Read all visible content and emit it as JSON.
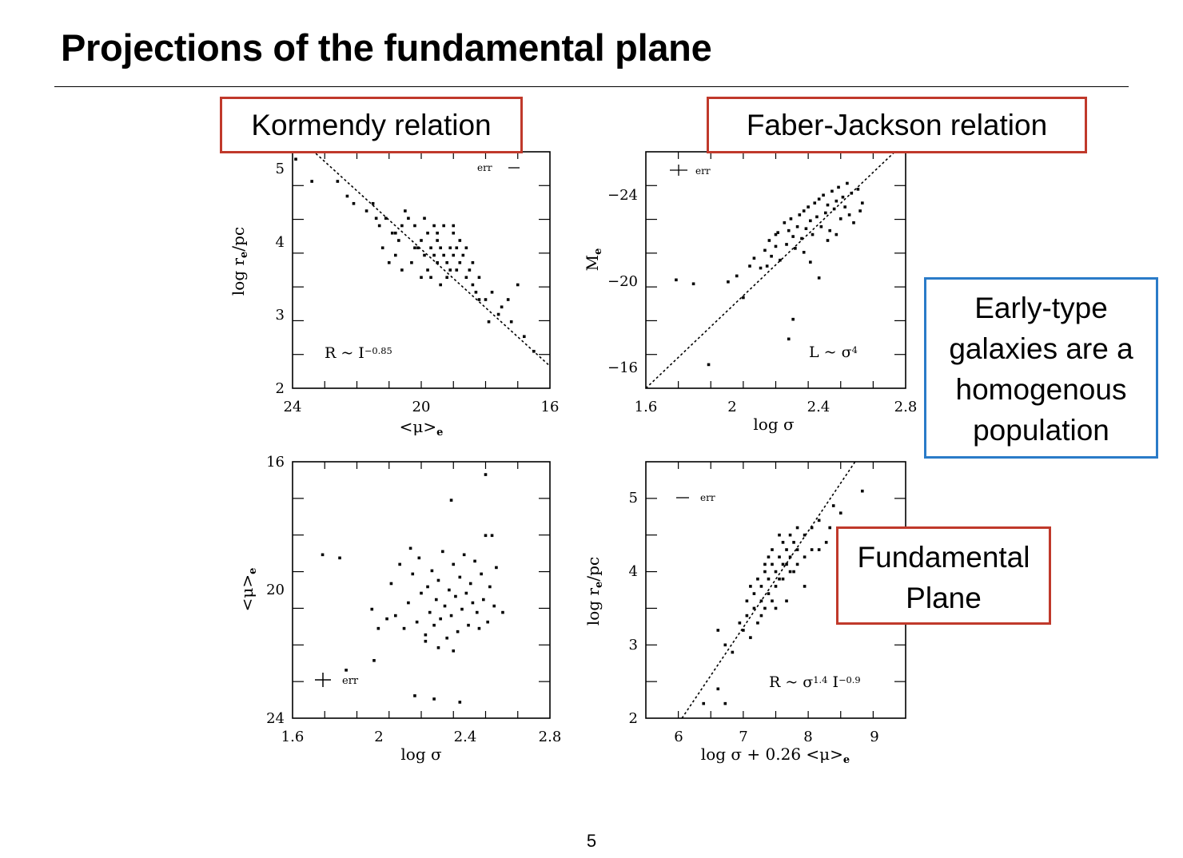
{
  "slide": {
    "title": "Projections of the fundamental plane",
    "page_number": "5"
  },
  "callouts": {
    "kormendy": "Kormendy relation",
    "faber_jackson": "Faber-Jackson relation",
    "early_type": [
      "Early-type",
      "galaxies are a",
      "homogenous",
      "population"
    ],
    "fundamental_plane": [
      "Fundamental",
      "Plane"
    ]
  },
  "colors": {
    "red_box": "#c0392b",
    "blue_box": "#2a7bc8"
  },
  "chart_data": [
    {
      "type": "scatter",
      "xlabel": "<μ>e",
      "ylabel": "log re/pc",
      "xlim": [
        24,
        16
      ],
      "ylim": [
        2,
        5.2
      ],
      "xticks": [
        "24",
        "20",
        "16"
      ],
      "yticks": [
        "2",
        "3",
        "4",
        "5"
      ],
      "annotation": "R ~ I^-0.85",
      "err_label": "err",
      "fit_line": [
        [
          24.6,
          5.7
        ],
        [
          16,
          2.3
        ]
      ],
      "points": [
        [
          23.9,
          5.1
        ],
        [
          23.4,
          4.8
        ],
        [
          22.6,
          4.8
        ],
        [
          22.3,
          4.6
        ],
        [
          22.1,
          4.5
        ],
        [
          21.7,
          4.4
        ],
        [
          21.5,
          4.5
        ],
        [
          21.3,
          4.2
        ],
        [
          21.1,
          4.3
        ],
        [
          20.9,
          4.1
        ],
        [
          20.7,
          4.0
        ],
        [
          20.6,
          4.2
        ],
        [
          20.4,
          4.3
        ],
        [
          20.2,
          4.2
        ],
        [
          20.1,
          3.9
        ],
        [
          20.0,
          4.0
        ],
        [
          19.9,
          3.8
        ],
        [
          19.8,
          4.1
        ],
        [
          19.7,
          3.9
        ],
        [
          19.6,
          3.8
        ],
        [
          19.5,
          3.7
        ],
        [
          19.5,
          4.0
        ],
        [
          19.4,
          3.9
        ],
        [
          19.3,
          3.8
        ],
        [
          19.2,
          3.7
        ],
        [
          19.1,
          3.9
        ],
        [
          19.0,
          3.8
        ],
        [
          18.9,
          3.6
        ],
        [
          18.8,
          3.7
        ],
        [
          18.7,
          3.8
        ],
        [
          18.6,
          3.5
        ],
        [
          18.5,
          3.6
        ],
        [
          18.4,
          3.4
        ],
        [
          18.3,
          3.3
        ],
        [
          18.2,
          3.5
        ],
        [
          18.0,
          3.2
        ],
        [
          17.8,
          3.3
        ],
        [
          17.5,
          3.1
        ],
        [
          17.2,
          2.9
        ],
        [
          16.8,
          2.7
        ],
        [
          16.5,
          2.5
        ],
        [
          19.9,
          4.3
        ],
        [
          19.6,
          4.2
        ],
        [
          19.3,
          4.2
        ],
        [
          19.0,
          4.1
        ],
        [
          18.8,
          4.0
        ],
        [
          20.6,
          3.6
        ],
        [
          20.3,
          3.7
        ],
        [
          20.0,
          3.5
        ],
        [
          19.7,
          3.5
        ],
        [
          19.4,
          3.4
        ],
        [
          19.2,
          3.5
        ],
        [
          21.0,
          3.7
        ],
        [
          21.2,
          3.9
        ],
        [
          20.8,
          3.8
        ],
        [
          18.6,
          3.9
        ],
        [
          18.2,
          3.2
        ],
        [
          17.9,
          2.9
        ],
        [
          17.6,
          3.0
        ],
        [
          19.0,
          4.2
        ],
        [
          20.5,
          4.4
        ],
        [
          19.8,
          3.6
        ],
        [
          19.1,
          3.6
        ],
        [
          18.9,
          3.9
        ],
        [
          19.5,
          4.1
        ],
        [
          20.2,
          3.9
        ],
        [
          20.8,
          4.1
        ],
        [
          21.4,
          4.3
        ],
        [
          18.4,
          3.7
        ],
        [
          17.0,
          3.4
        ],
        [
          17.3,
          3.2
        ]
      ]
    },
    {
      "type": "scatter",
      "xlabel": "log σ",
      "ylabel": "Me",
      "xlim": [
        1.6,
        2.8
      ],
      "ylim": [
        -14.8,
        -26.8
      ],
      "xticks": [
        "1.6",
        "2",
        "2.4",
        "2.8"
      ],
      "yticks": [
        "-24",
        "-20",
        "-16"
      ],
      "annotation": "L ~ σ^4",
      "err_label": "err",
      "fit_line": [
        [
          1.6,
          -14.8
        ],
        [
          2.75,
          -26.8
        ]
      ],
      "points": [
        [
          1.74,
          -20.3
        ],
        [
          1.82,
          -20.1
        ],
        [
          1.89,
          -16.0
        ],
        [
          1.98,
          -20.2
        ],
        [
          2.02,
          -20.5
        ],
        [
          2.05,
          -19.4
        ],
        [
          2.08,
          -21.0
        ],
        [
          2.1,
          -21.4
        ],
        [
          2.13,
          -20.9
        ],
        [
          2.15,
          -21.8
        ],
        [
          2.17,
          -22.3
        ],
        [
          2.18,
          -21.5
        ],
        [
          2.2,
          -22.0
        ],
        [
          2.21,
          -22.7
        ],
        [
          2.22,
          -21.3
        ],
        [
          2.24,
          -23.2
        ],
        [
          2.25,
          -22.1
        ],
        [
          2.26,
          -22.8
        ],
        [
          2.27,
          -23.4
        ],
        [
          2.28,
          -22.5
        ],
        [
          2.29,
          -21.9
        ],
        [
          2.3,
          -23.0
        ],
        [
          2.31,
          -23.6
        ],
        [
          2.32,
          -22.4
        ],
        [
          2.33,
          -23.8
        ],
        [
          2.34,
          -22.9
        ],
        [
          2.35,
          -24.0
        ],
        [
          2.36,
          -23.3
        ],
        [
          2.37,
          -22.6
        ],
        [
          2.38,
          -24.2
        ],
        [
          2.39,
          -23.5
        ],
        [
          2.4,
          -24.4
        ],
        [
          2.41,
          -23.0
        ],
        [
          2.42,
          -24.6
        ],
        [
          2.43,
          -23.7
        ],
        [
          2.44,
          -24.1
        ],
        [
          2.45,
          -22.8
        ],
        [
          2.46,
          -24.8
        ],
        [
          2.47,
          -23.9
        ],
        [
          2.48,
          -24.3
        ],
        [
          2.49,
          -25.0
        ],
        [
          2.5,
          -23.4
        ],
        [
          2.51,
          -24.5
        ],
        [
          2.52,
          -24.0
        ],
        [
          2.53,
          -25.2
        ],
        [
          2.54,
          -23.6
        ],
        [
          2.55,
          -24.7
        ],
        [
          2.56,
          -23.2
        ],
        [
          2.58,
          -24.9
        ],
        [
          2.59,
          -23.8
        ],
        [
          2.6,
          -24.2
        ],
        [
          2.28,
          -18.3
        ],
        [
          2.26,
          -17.3
        ],
        [
          2.4,
          -20.4
        ],
        [
          2.36,
          -21.2
        ],
        [
          2.44,
          -22.3
        ],
        [
          2.2,
          -22.6
        ],
        [
          2.16,
          -21.0
        ],
        [
          2.48,
          -22.6
        ],
        [
          2.33,
          -21.7
        ]
      ]
    },
    {
      "type": "scatter",
      "xlabel": "log σ",
      "ylabel": "<μ>e",
      "xlim": [
        1.6,
        2.8
      ],
      "ylim": [
        16,
        24
      ],
      "xticks": [
        "1.6",
        "2",
        "2.4",
        "2.8"
      ],
      "yticks": [
        "16",
        "20",
        "24"
      ],
      "err_label": "err",
      "points": [
        [
          1.85,
          17.5
        ],
        [
          1.98,
          17.8
        ],
        [
          2.17,
          16.7
        ],
        [
          2.26,
          16.6
        ],
        [
          2.38,
          16.5
        ],
        [
          1.74,
          21.1
        ],
        [
          1.82,
          21.0
        ],
        [
          1.97,
          19.4
        ],
        [
          2.0,
          18.8
        ],
        [
          2.04,
          19.1
        ],
        [
          2.06,
          20.2
        ],
        [
          2.08,
          19.2
        ],
        [
          2.1,
          20.8
        ],
        [
          2.12,
          18.8
        ],
        [
          2.14,
          19.6
        ],
        [
          2.16,
          20.5
        ],
        [
          2.18,
          19.0
        ],
        [
          2.19,
          21.0
        ],
        [
          2.2,
          19.9
        ],
        [
          2.22,
          18.6
        ],
        [
          2.23,
          20.1
        ],
        [
          2.24,
          19.3
        ],
        [
          2.25,
          20.6
        ],
        [
          2.26,
          18.9
        ],
        [
          2.27,
          19.7
        ],
        [
          2.28,
          20.3
        ],
        [
          2.29,
          19.1
        ],
        [
          2.3,
          21.2
        ],
        [
          2.31,
          19.5
        ],
        [
          2.32,
          18.5
        ],
        [
          2.33,
          20.0
        ],
        [
          2.34,
          19.2
        ],
        [
          2.35,
          20.8
        ],
        [
          2.36,
          19.8
        ],
        [
          2.37,
          18.7
        ],
        [
          2.38,
          20.4
        ],
        [
          2.39,
          19.4
        ],
        [
          2.4,
          21.1
        ],
        [
          2.41,
          19.9
        ],
        [
          2.42,
          18.9
        ],
        [
          2.43,
          20.2
        ],
        [
          2.44,
          19.6
        ],
        [
          2.45,
          20.9
        ],
        [
          2.46,
          19.3
        ],
        [
          2.47,
          18.8
        ],
        [
          2.48,
          20.5
        ],
        [
          2.49,
          19.7
        ],
        [
          2.5,
          21.7
        ],
        [
          2.51,
          19.0
        ],
        [
          2.52,
          20.1
        ],
        [
          2.53,
          21.7
        ],
        [
          2.54,
          19.5
        ],
        [
          2.55,
          20.7
        ],
        [
          2.58,
          19.3
        ],
        [
          2.34,
          22.8
        ],
        [
          2.5,
          23.6
        ],
        [
          2.22,
          18.4
        ],
        [
          2.28,
          18.2
        ],
        [
          2.35,
          18.1
        ],
        [
          2.15,
          21.3
        ]
      ]
    },
    {
      "type": "scatter",
      "xlabel": "log σ + 0.26 <μ>e",
      "ylabel": "log re/pc",
      "xlim": [
        5.6,
        9.2
      ],
      "ylim": [
        2,
        5.5
      ],
      "xticks": [
        "6",
        "7",
        "8",
        "9"
      ],
      "yticks": [
        "2",
        "3",
        "4",
        "5"
      ],
      "annotation": "R ~ σ^1.4 I^-0.9",
      "err_label": "err",
      "fit_line": [
        [
          6.1,
          2.0
        ],
        [
          8.5,
          5.5
        ]
      ],
      "points": [
        [
          6.4,
          2.2
        ],
        [
          6.6,
          2.4
        ],
        [
          6.6,
          3.2
        ],
        [
          6.7,
          3.0
        ],
        [
          6.8,
          2.9
        ],
        [
          6.9,
          3.3
        ],
        [
          7.0,
          3.6
        ],
        [
          7.0,
          3.4
        ],
        [
          7.1,
          3.7
        ],
        [
          7.1,
          3.5
        ],
        [
          7.15,
          3.9
        ],
        [
          7.2,
          3.6
        ],
        [
          7.2,
          3.8
        ],
        [
          7.25,
          4.0
        ],
        [
          7.3,
          3.7
        ],
        [
          7.3,
          3.9
        ],
        [
          7.35,
          4.1
        ],
        [
          7.4,
          3.8
        ],
        [
          7.4,
          4.0
        ],
        [
          7.45,
          4.2
        ],
        [
          7.5,
          3.9
        ],
        [
          7.5,
          4.1
        ],
        [
          7.55,
          4.3
        ],
        [
          7.6,
          4.0
        ],
        [
          7.6,
          4.2
        ],
        [
          7.65,
          4.4
        ],
        [
          7.7,
          4.1
        ],
        [
          7.7,
          4.3
        ],
        [
          7.8,
          4.5
        ],
        [
          7.8,
          4.2
        ],
        [
          7.9,
          4.6
        ],
        [
          8.0,
          4.7
        ],
        [
          8.1,
          4.4
        ],
        [
          8.2,
          4.9
        ],
        [
          8.3,
          4.8
        ],
        [
          7.55,
          3.6
        ],
        [
          7.35,
          4.3
        ],
        [
          7.45,
          4.5
        ],
        [
          7.25,
          3.5
        ],
        [
          7.15,
          3.3
        ],
        [
          7.05,
          3.8
        ],
        [
          7.6,
          4.5
        ],
        [
          7.8,
          3.8
        ],
        [
          8.0,
          4.3
        ],
        [
          8.6,
          5.1
        ],
        [
          7.45,
          3.9
        ],
        [
          7.35,
          3.6
        ],
        [
          7.65,
          4.0
        ],
        [
          7.25,
          4.1
        ],
        [
          7.5,
          4.4
        ],
        [
          6.95,
          3.2
        ],
        [
          7.05,
          3.1
        ],
        [
          7.7,
          4.6
        ],
        [
          7.9,
          4.3
        ],
        [
          8.15,
          4.6
        ],
        [
          7.4,
          3.5
        ],
        [
          7.2,
          3.4
        ],
        [
          7.55,
          4.1
        ],
        [
          7.3,
          4.2
        ],
        [
          6.7,
          2.2
        ]
      ]
    }
  ]
}
